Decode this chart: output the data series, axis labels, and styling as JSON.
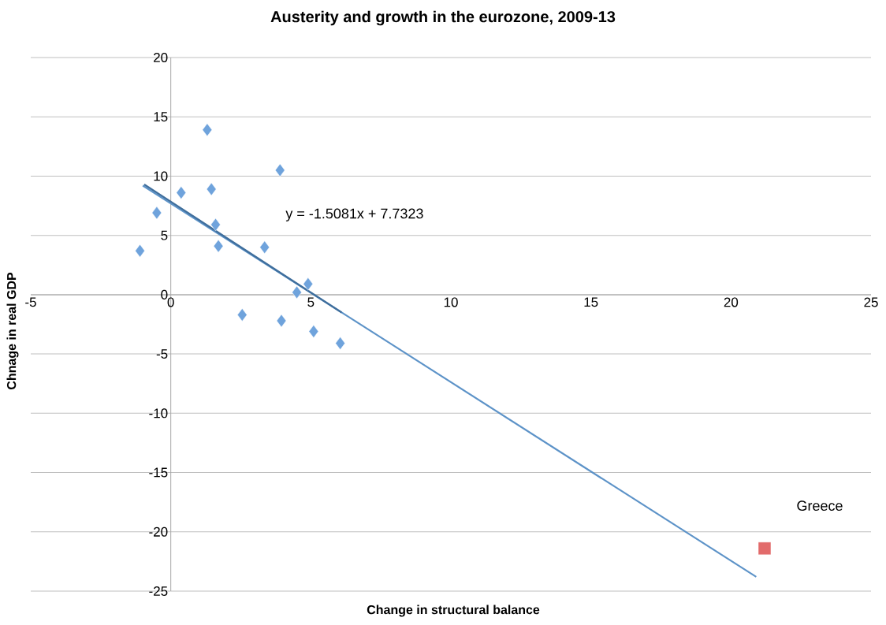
{
  "chart_data": {
    "type": "scatter",
    "title": "Austerity and growth in the eurozone, 2009-13",
    "xlabel": "Change in structural balance",
    "ylabel": "Chnage in real GDP",
    "xlim": [
      -5,
      25
    ],
    "ylim": [
      -25,
      20
    ],
    "xticks": [
      -5,
      0,
      5,
      10,
      15,
      20,
      25
    ],
    "yticks": [
      -25,
      -20,
      -15,
      -10,
      -5,
      0,
      5,
      10,
      15,
      20
    ],
    "grid": "y",
    "series": [
      {
        "marker": "diamond",
        "color": "#6fa3dc",
        "x": [
          -1.1,
          -0.5,
          0.37,
          1.3,
          1.45,
          1.6,
          1.7,
          2.55,
          3.35,
          3.9,
          3.95,
          4.5,
          4.9,
          5.1,
          6.05
        ],
        "values": [
          3.7,
          6.9,
          8.6,
          13.9,
          8.9,
          5.9,
          4.1,
          -1.7,
          4.0,
          10.5,
          -2.2,
          0.2,
          0.9,
          -3.1,
          -4.1
        ]
      },
      {
        "marker": "square",
        "color": "#e26b6b",
        "x": [
          21.2
        ],
        "values": [
          -21.4
        ]
      },
      {
        "type": "line",
        "color": "#5d93c8",
        "x": [
          -1,
          20.9
        ],
        "values": [
          9.2,
          -23.8
        ]
      },
      {
        "type": "line",
        "color": "#3f6e9c",
        "x": [
          -0.95,
          6.1
        ],
        "values": [
          9.3,
          -1.5
        ]
      }
    ],
    "annotations": [
      "y = -1.5081x + 7.7323",
      "Greece"
    ]
  }
}
